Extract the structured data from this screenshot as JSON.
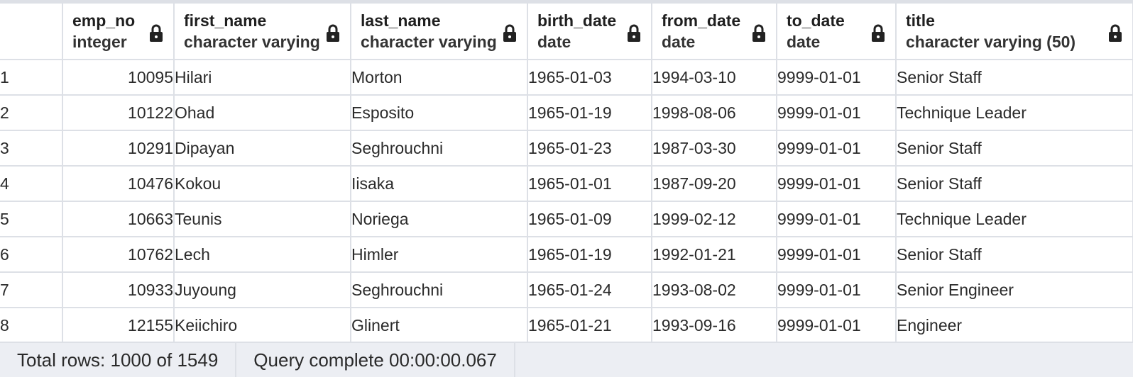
{
  "columns": [
    {
      "name": "emp_no",
      "type": "integer",
      "icon": "lock-icon"
    },
    {
      "name": "first_name",
      "type": "character varying",
      "icon": "lock-icon"
    },
    {
      "name": "last_name",
      "type": "character varying",
      "icon": "lock-icon"
    },
    {
      "name": "birth_date",
      "type": "date",
      "icon": "lock-icon"
    },
    {
      "name": "from_date",
      "type": "date",
      "icon": "lock-icon"
    },
    {
      "name": "to_date",
      "type": "date",
      "icon": "lock-icon"
    },
    {
      "name": "title",
      "type": "character varying (50)",
      "icon": "lock-icon"
    }
  ],
  "rows": [
    {
      "n": "1",
      "emp_no": "10095",
      "first_name": "Hilari",
      "last_name": "Morton",
      "birth_date": "1965-01-03",
      "from_date": "1994-03-10",
      "to_date": "9999-01-01",
      "title": "Senior Staff"
    },
    {
      "n": "2",
      "emp_no": "10122",
      "first_name": "Ohad",
      "last_name": "Esposito",
      "birth_date": "1965-01-19",
      "from_date": "1998-08-06",
      "to_date": "9999-01-01",
      "title": "Technique Leader"
    },
    {
      "n": "3",
      "emp_no": "10291",
      "first_name": "Dipayan",
      "last_name": "Seghrouchni",
      "birth_date": "1965-01-23",
      "from_date": "1987-03-30",
      "to_date": "9999-01-01",
      "title": "Senior Staff"
    },
    {
      "n": "4",
      "emp_no": "10476",
      "first_name": "Kokou",
      "last_name": "Iisaka",
      "birth_date": "1965-01-01",
      "from_date": "1987-09-20",
      "to_date": "9999-01-01",
      "title": "Senior Staff"
    },
    {
      "n": "5",
      "emp_no": "10663",
      "first_name": "Teunis",
      "last_name": "Noriega",
      "birth_date": "1965-01-09",
      "from_date": "1999-02-12",
      "to_date": "9999-01-01",
      "title": "Technique Leader"
    },
    {
      "n": "6",
      "emp_no": "10762",
      "first_name": "Lech",
      "last_name": "Himler",
      "birth_date": "1965-01-19",
      "from_date": "1992-01-21",
      "to_date": "9999-01-01",
      "title": "Senior Staff"
    },
    {
      "n": "7",
      "emp_no": "10933",
      "first_name": "Juyoung",
      "last_name": "Seghrouchni",
      "birth_date": "1965-01-24",
      "from_date": "1993-08-02",
      "to_date": "9999-01-01",
      "title": "Senior Engineer"
    },
    {
      "n": "8",
      "emp_no": "12155",
      "first_name": "Keiichiro",
      "last_name": "Glinert",
      "birth_date": "1965-01-21",
      "from_date": "1993-09-16",
      "to_date": "9999-01-01",
      "title": "Engineer"
    }
  ],
  "status": {
    "total_rows": "Total rows: 1000 of 1549",
    "query": "Query complete 00:00:00.067"
  },
  "colors": {
    "border": "#dde0e6",
    "status_bg": "#eceef3"
  }
}
